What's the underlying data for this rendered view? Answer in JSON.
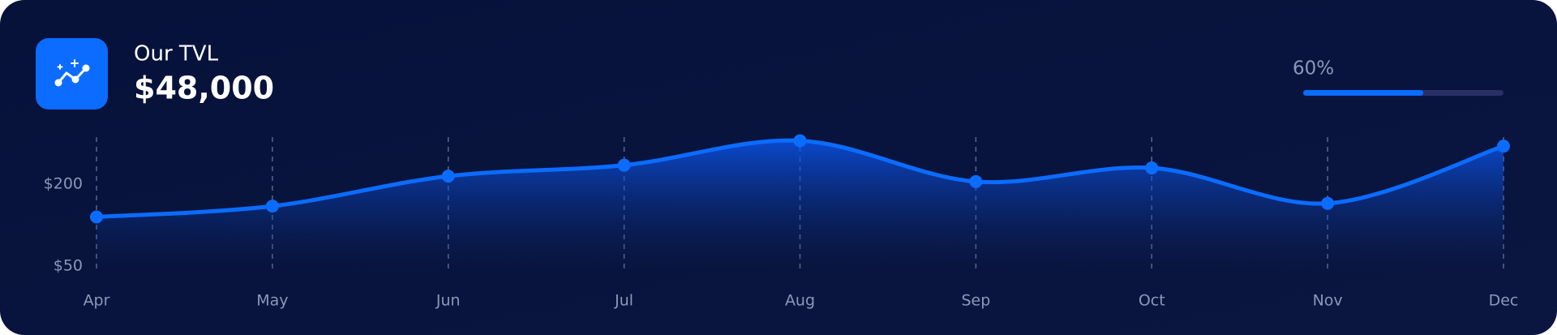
{
  "header": {
    "title": "Our TVL",
    "value": "$48,000"
  },
  "progress": {
    "value": 60,
    "label": "60%"
  },
  "chart_data": {
    "type": "line",
    "categories": [
      "Apr",
      "May",
      "Jun",
      "Jul",
      "Aug",
      "Sep",
      "Oct",
      "Nov",
      "Dec"
    ],
    "series": [
      {
        "name": "TVL",
        "color": "#0b6cff",
        "values": [
          140,
          160,
          215,
          235,
          280,
          205,
          230,
          165,
          270
        ]
      }
    ],
    "ylim": [
      50,
      300
    ],
    "yticks": [
      {
        "value": 50,
        "label": "$50"
      },
      {
        "value": 200,
        "label": "$200"
      }
    ]
  }
}
